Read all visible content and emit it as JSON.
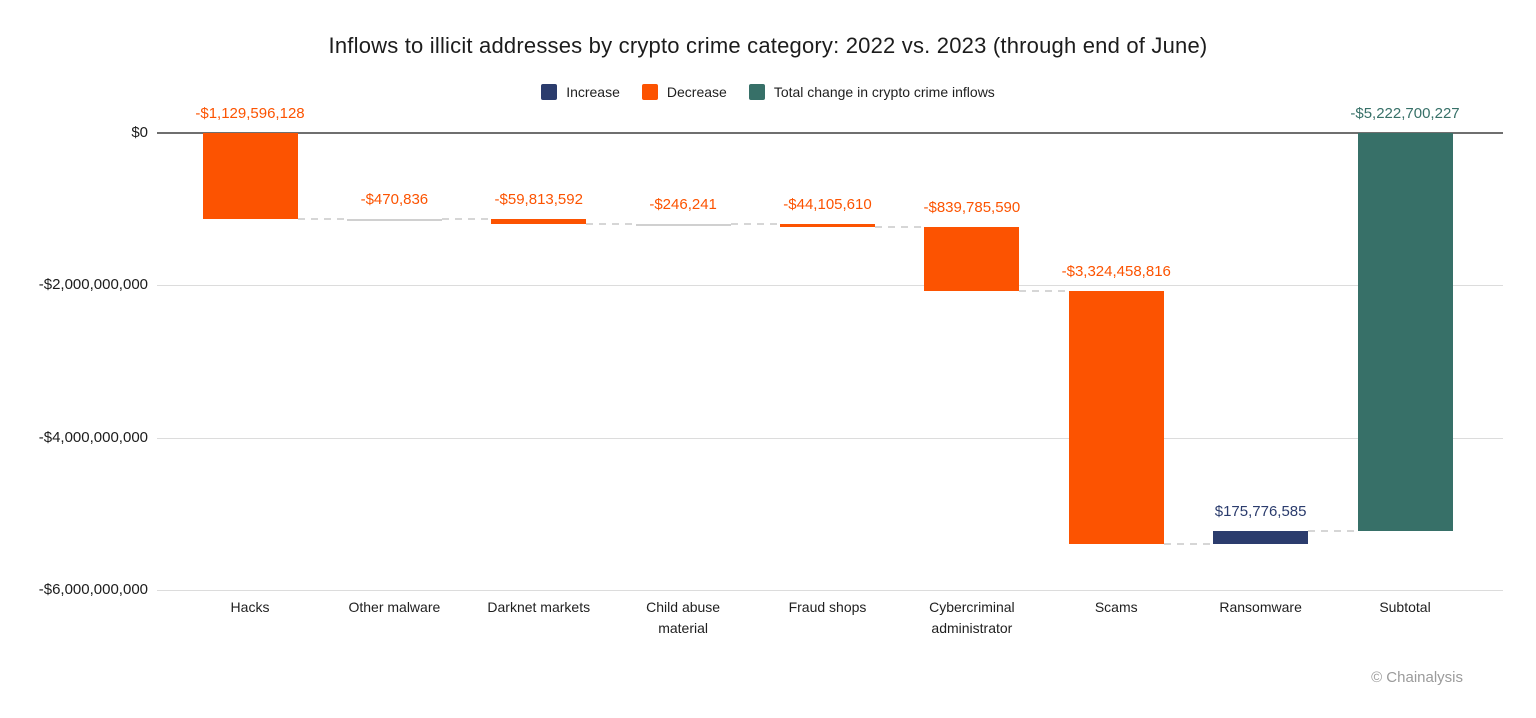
{
  "title": "Inflows to illicit addresses by crypto crime category: 2022 vs. 2023 (through end of June)",
  "legend": {
    "items": [
      {
        "label": "Increase",
        "kind": "increase",
        "color": "#2b3c6d"
      },
      {
        "label": "Decrease",
        "kind": "decrease",
        "color": "#fc5301"
      },
      {
        "label": "Total change in crypto crime inflows",
        "kind": "total",
        "color": "#377068"
      }
    ]
  },
  "footer": {
    "credit": "© Chainalysis"
  },
  "chart_data": {
    "type": "waterfall",
    "title": "Inflows to illicit addresses by crypto crime category: 2022 vs. 2023 (through end of June)",
    "ylabel": "",
    "xlabel": "",
    "ylim": [
      -6000000000,
      0
    ],
    "grid": true,
    "legend_position": "top",
    "yticks": [
      {
        "value": 0,
        "label": "$0"
      },
      {
        "value": -2000000000,
        "label": "-$2,000,000,000"
      },
      {
        "value": -4000000000,
        "label": "-$4,000,000,000"
      },
      {
        "value": -6000000000,
        "label": "-$6,000,000,000"
      }
    ],
    "items": [
      {
        "category": "Hacks",
        "axis_label": "Hacks",
        "value": -1129596128,
        "label": "-$1,129,596,128",
        "kind": "decrease"
      },
      {
        "category": "Other malware",
        "axis_label": "Other malware",
        "value": -470836,
        "label": "-$470,836",
        "kind": "decrease"
      },
      {
        "category": "Darknet markets",
        "axis_label": "Darknet markets",
        "value": -59813592,
        "label": "-$59,813,592",
        "kind": "decrease"
      },
      {
        "category": "Child abuse material",
        "axis_label": "Child abuse\nmaterial",
        "value": -246241,
        "label": "-$246,241",
        "kind": "decrease"
      },
      {
        "category": "Fraud shops",
        "axis_label": "Fraud shops",
        "value": -44105610,
        "label": "-$44,105,610",
        "kind": "decrease"
      },
      {
        "category": "Cybercriminal administrator",
        "axis_label": "Cybercriminal\nadministrator",
        "value": -839785590,
        "label": "-$839,785,590",
        "kind": "decrease"
      },
      {
        "category": "Scams",
        "axis_label": "Scams",
        "value": -3324458816,
        "label": "-$3,324,458,816",
        "kind": "decrease"
      },
      {
        "category": "Ransomware",
        "axis_label": "Ransomware",
        "value": 175776585,
        "label": "$175,776,585",
        "kind": "increase"
      },
      {
        "category": "Subtotal",
        "axis_label": "Subtotal",
        "value": -5222700227,
        "label": "-$5,222,700,227",
        "kind": "total"
      }
    ]
  }
}
